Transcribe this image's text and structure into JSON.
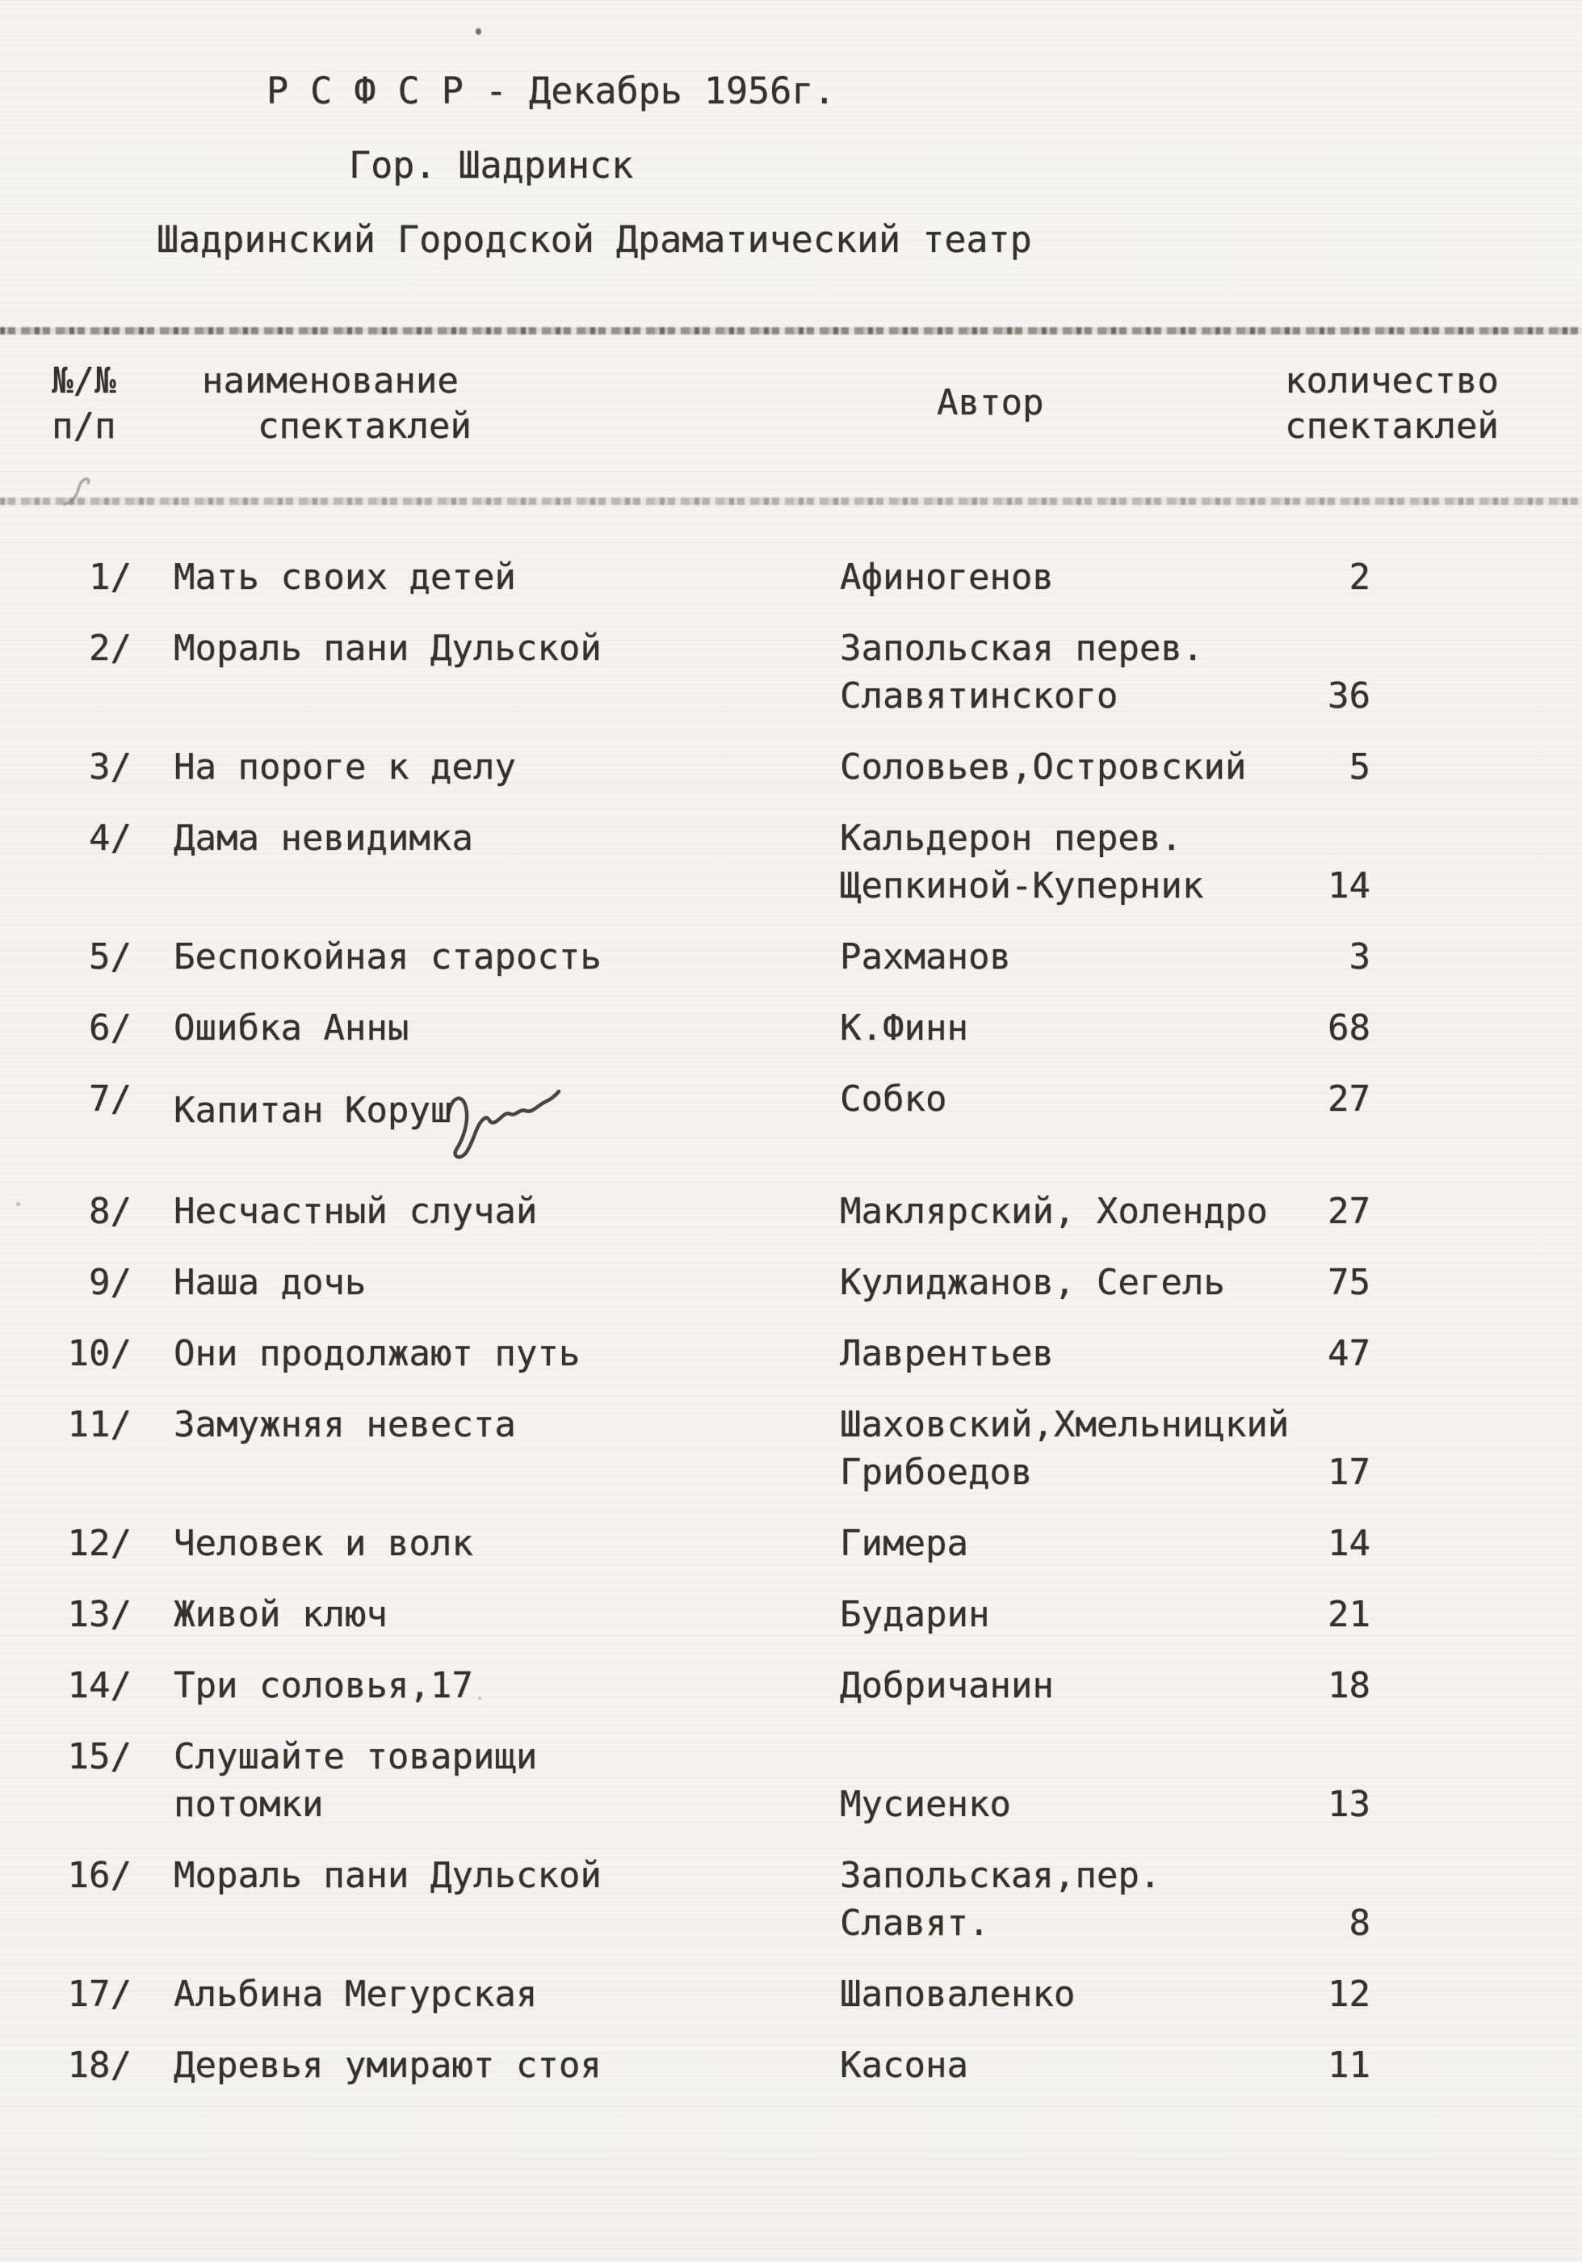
{
  "doc": {
    "title_line1": "Р С Ф С Р   - Декабрь 1956г.",
    "title_line2": "Гор. Шадринск",
    "title_line3": "Шадринский Городской Драматический театр"
  },
  "table": {
    "header": {
      "num_line1": "№/№",
      "num_line2": "п/п",
      "name_line1": "наименование",
      "name_line2": "спектаклей",
      "author": "Автор",
      "count_line1": "количество",
      "count_line2": "спектаклей"
    },
    "rows": [
      {
        "num": "1/",
        "title": [
          "Мать своих детей"
        ],
        "author": [
          "Афиногенов"
        ],
        "count": "2",
        "author_align": "top",
        "count_align": "top"
      },
      {
        "num": "2/",
        "title": [
          "Мораль пани Дульской"
        ],
        "author": [
          "Запольская перев.",
          "Славятинского"
        ],
        "count": "36",
        "author_align": "top",
        "count_align": "bottom"
      },
      {
        "num": "3/",
        "title": [
          "На пороге к делу"
        ],
        "author": [
          "Соловьев,Островский"
        ],
        "count": "5",
        "author_align": "top",
        "count_align": "top"
      },
      {
        "num": "4/",
        "title": [
          "Дама невидимка"
        ],
        "author": [
          "Кальдерон перев.",
          "Щепкиной-Куперник"
        ],
        "count": "14",
        "author_align": "top",
        "count_align": "bottom"
      },
      {
        "num": "5/",
        "title": [
          "Беспокойная старость"
        ],
        "author": [
          "Рахманов"
        ],
        "count": "3",
        "author_align": "top",
        "count_align": "top"
      },
      {
        "num": "6/",
        "title": [
          "Ошибка Анны"
        ],
        "author": [
          "К.Финн"
        ],
        "count": "68",
        "author_align": "top",
        "count_align": "top"
      },
      {
        "num": "7/",
        "title": [
          "Капитан Коруш"
        ],
        "has_squiggle": true,
        "author": [
          "Собко"
        ],
        "count": "27",
        "author_align": "top",
        "count_align": "top"
      },
      {
        "num": "8/",
        "title": [
          "Несчастный случай"
        ],
        "author": [
          "Маклярский, Холендро"
        ],
        "count": "27",
        "author_align": "top",
        "count_align": "top"
      },
      {
        "num": "9/",
        "title": [
          "Наша дочь"
        ],
        "author": [
          "Кулиджанов, Сегель"
        ],
        "count": "75",
        "author_align": "top",
        "count_align": "top"
      },
      {
        "num": "10/",
        "title": [
          "Они продолжают путь"
        ],
        "author": [
          "Лаврентьев"
        ],
        "count": "47",
        "author_align": "top",
        "count_align": "top"
      },
      {
        "num": "11/",
        "title": [
          "Замужняя невеста"
        ],
        "author": [
          "Шаховский,Хмельницкий",
          "Грибоедов"
        ],
        "count": "17",
        "author_align": "top",
        "count_align": "bottom"
      },
      {
        "num": "12/",
        "title": [
          "Человек и волк"
        ],
        "author": [
          "Гимера"
        ],
        "count": "14",
        "author_align": "top",
        "count_align": "top"
      },
      {
        "num": "13/",
        "title": [
          "Живой ключ"
        ],
        "author": [
          "Бударин"
        ],
        "count": "21",
        "author_align": "top",
        "count_align": "top"
      },
      {
        "num": "14/",
        "title": [
          "Три соловья,17"
        ],
        "author": [
          "Добричанин"
        ],
        "count": "18",
        "author_align": "top",
        "count_align": "top"
      },
      {
        "num": "15/",
        "title": [
          "Слушайте товарищи",
          "потомки"
        ],
        "author": [
          "Мусиенко"
        ],
        "count": "13",
        "author_align": "bottom",
        "count_align": "bottom"
      },
      {
        "num": "16/",
        "title": [
          "Мораль пани Дульской"
        ],
        "author": [
          "Запольская,пер.",
          "Славят."
        ],
        "count": "8",
        "author_align": "top",
        "count_align": "bottom"
      },
      {
        "num": "17/",
        "title": [
          "Альбина Мегурская"
        ],
        "author": [
          "Шаповаленко"
        ],
        "count": "12",
        "author_align": "top",
        "count_align": "top"
      },
      {
        "num": "18/",
        "title": [
          "Деревья умирают стоя"
        ],
        "author": [
          "Касона"
        ],
        "count": "11",
        "author_align": "top",
        "count_align": "top"
      }
    ]
  },
  "colors": {
    "paper": "#f4f3f0",
    "ink": "#34312b",
    "rule": "#48443d"
  }
}
